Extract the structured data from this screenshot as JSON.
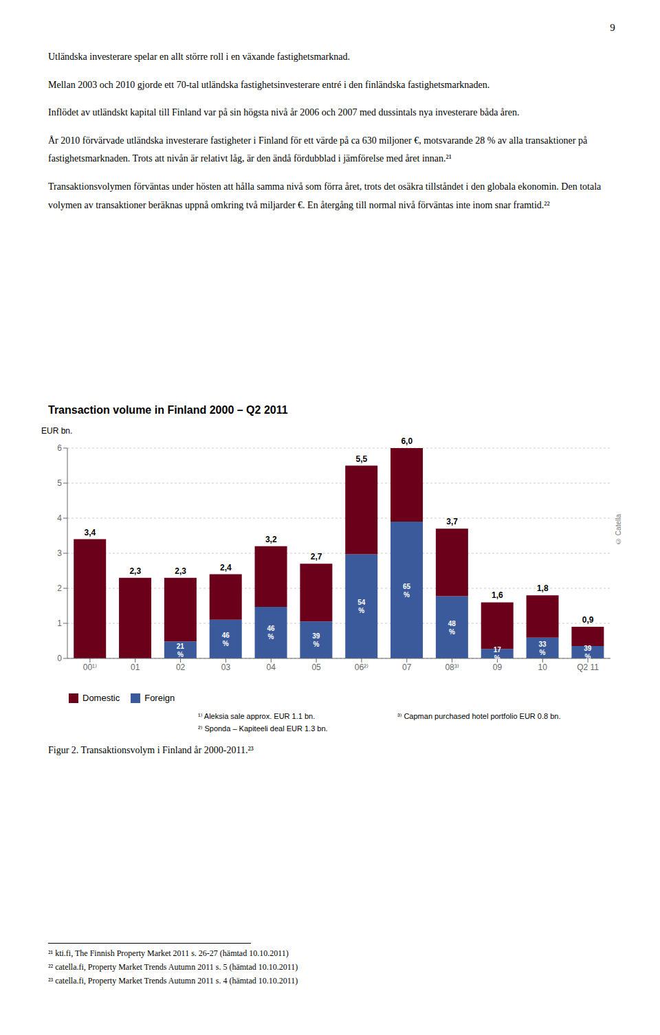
{
  "page": {
    "page_number": "9",
    "paragraphs": [
      "Utländska investerare spelar en allt större roll i en växande fastighetsmarknad.",
      "Mellan 2003 och 2010 gjorde ett 70-tal utländska fastighetsinvesterare entré i den finländska fastighetsmarknaden.",
      "Inflödet av utländskt kapital till Finland var på sin högsta nivå år 2006 och 2007 med dussintals nya investerare båda åren.",
      "År 2010 förvärvade utländska investerare fastigheter i Finland för ett värde på ca 630 miljoner €, motsvarande 28 % av alla transaktioner på fastighetsmarknaden. Trots att nivån är relativt låg, är den ändå fördubblad i jämförelse med året innan.²¹",
      "Transaktionsvolymen förväntas under hösten att hålla samma nivå som förra året, trots det osäkra tillståndet i den globala ekonomin. Den totala volymen av transaktioner beräknas uppnå omkring två miljarder €. En återgång till normal nivå förväntas inte inom snar framtid.²²"
    ],
    "caption": "Figur 2. Transaktionsvolym i Finland år 2000-2011.²³",
    "footnotes": [
      "²¹ kti.fi, The Finnish Property Market 2011 s. 26-27 (hämtad 10.10.2011)",
      "²² catella.fi, Property Market Trends Autumn 2011 s. 5 (hämtad 10.10.2011)",
      "²³ catella.fi, Property Market Trends Autumn 2011 s. 4 (hämtad 10.10.2011)"
    ]
  },
  "chart_data": {
    "type": "bar",
    "stacked": true,
    "title": "Transaction volume in Finland 2000 – Q2 2011",
    "ylabel": "EUR bn.",
    "categories": [
      "00¹⁾",
      "01",
      "02",
      "03",
      "04",
      "05",
      "06²⁾",
      "07",
      "08³⁾",
      "09",
      "10",
      "Q2 11"
    ],
    "series": [
      {
        "name": "Foreign",
        "color": "#3A5A9C",
        "values": [
          0.0,
          0.0,
          0.483,
          1.104,
          1.472,
          1.053,
          2.97,
          3.9,
          1.776,
          0.272,
          0.594,
          0.351
        ],
        "shares": [
          null,
          null,
          21,
          46,
          46,
          39,
          54,
          65,
          48,
          17,
          33,
          39
        ],
        "share_labels": [
          null,
          null,
          "21\n%",
          "46\n%",
          "46\n%",
          "39\n%",
          "54\n%",
          "65\n%",
          "48\n%",
          "17\n%",
          "33\n%",
          "39\n%"
        ]
      },
      {
        "name": "Domestic",
        "color": "#6B001A",
        "values": [
          3.4,
          2.3,
          1.817,
          1.296,
          1.728,
          1.647,
          2.53,
          2.1,
          1.924,
          1.328,
          1.206,
          0.549
        ]
      }
    ],
    "totals": [
      3.4,
      2.3,
      2.3,
      2.4,
      3.2,
      2.7,
      5.5,
      6.0,
      3.7,
      1.6,
      1.8,
      0.9
    ],
    "total_labels": [
      "3,4",
      "2,3",
      "2,3",
      "2,4",
      "3,2",
      "2,7",
      "5,5",
      "6,0",
      "3,7",
      "1,6",
      "1,8",
      "0,9"
    ],
    "ylim": [
      0,
      6
    ],
    "yticks": [
      0,
      1,
      2,
      3,
      4,
      5,
      6
    ],
    "grid": true,
    "legend": "bottom",
    "annotations": [
      "© Catella"
    ],
    "footnotes": [
      "¹⁾ Aleksia sale approx. EUR 1.1 bn.",
      "²⁾ Sponda – Kapiteeli deal EUR 1.3 bn.",
      "³⁾ Capman purchased hotel portfolio EUR 0.8 bn."
    ]
  }
}
